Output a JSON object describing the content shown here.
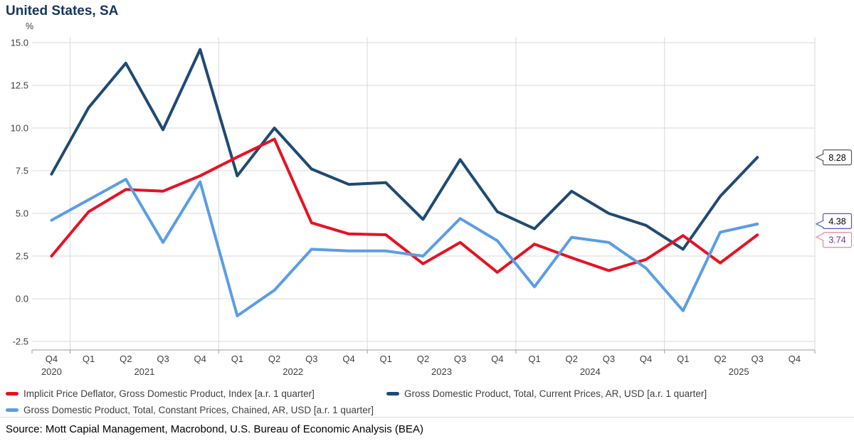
{
  "title": "United States, SA",
  "unit_label": "%",
  "source": "Source: Mott Capial Management, Macrobond, U.S. Bureau of Economic Analysis (BEA)",
  "colors": {
    "title_text": "#17365d",
    "axis_text": "#3f3f3f",
    "gridline": "#d9d9d9",
    "axis_line": "#9e9e9e"
  },
  "chart_data": {
    "type": "line",
    "title": "United States, SA",
    "ylabel": "%",
    "ylim": [
      -2.5,
      15.0
    ],
    "grid": true,
    "legend_position": "bottom",
    "y_ticks": [
      15.0,
      12.5,
      10.0,
      7.5,
      5.0,
      2.5,
      0.0,
      -2.5
    ],
    "x_quarters": [
      "Q4",
      "Q1",
      "Q2",
      "Q3",
      "Q4",
      "Q1",
      "Q2",
      "Q3",
      "Q4",
      "Q1",
      "Q2",
      "Q3",
      "Q4",
      "Q1",
      "Q2",
      "Q3",
      "Q4",
      "Q1",
      "Q2",
      "Q3",
      "Q4"
    ],
    "x_years": [
      {
        "label": "2020",
        "center_index": 0
      },
      {
        "label": "2021",
        "center_index": 2.5
      },
      {
        "label": "2022",
        "center_index": 6.5
      },
      {
        "label": "2023",
        "center_index": 10.5
      },
      {
        "label": "2024",
        "center_index": 14.5
      },
      {
        "label": "2025",
        "center_index": 18.5
      }
    ],
    "series": [
      {
        "name": "Implicit Price Deflator, Gross Domestic Product, Index [a.r. 1 quarter]",
        "color": "#e81123",
        "values": [
          2.5,
          5.1,
          6.4,
          6.3,
          7.2,
          8.3,
          9.35,
          4.45,
          3.8,
          3.75,
          2.05,
          3.3,
          1.55,
          3.2,
          2.4,
          1.65,
          2.3,
          3.7,
          2.1,
          3.74,
          null
        ]
      },
      {
        "name": "Gross Domestic Product, Total, Current Prices, AR, USD [a.r. 1 quarter]",
        "color": "#1f4a72",
        "values": [
          7.3,
          11.2,
          13.8,
          9.9,
          14.6,
          7.2,
          10.0,
          7.6,
          6.7,
          6.8,
          4.65,
          8.15,
          5.1,
          4.1,
          6.3,
          5.0,
          4.3,
          2.9,
          6.0,
          8.28,
          null
        ]
      },
      {
        "name": "Gross Domestic Product, Total, Constant Prices, Chained, AR, USD [a.r. 1 quarter]",
        "color": "#5b9de5",
        "values": [
          4.6,
          5.8,
          7.0,
          3.3,
          6.85,
          -1.0,
          0.5,
          2.9,
          2.8,
          2.8,
          2.5,
          4.7,
          3.4,
          0.7,
          3.6,
          3.3,
          1.8,
          -0.7,
          3.9,
          4.38,
          null
        ]
      }
    ],
    "draw_order": [
      1,
      0,
      2
    ],
    "end_labels": [
      {
        "text": "8.28",
        "value": 8.28,
        "series_index": 1,
        "border_color": "#595959",
        "text_color": "#000000",
        "box_dy": 0,
        "arrow_dy": 0
      },
      {
        "text": "4.38",
        "value": 4.38,
        "series_index": 2,
        "border_color": "#5157d6",
        "text_color": "#000000",
        "box_dy": -4,
        "arrow_dy": 0
      },
      {
        "text": "3.74",
        "value": 3.74,
        "series_index": 0,
        "border_color": "#ee8296",
        "text_color": "#7030a0",
        "box_dy": 7,
        "arrow_dy": 3
      }
    ]
  }
}
